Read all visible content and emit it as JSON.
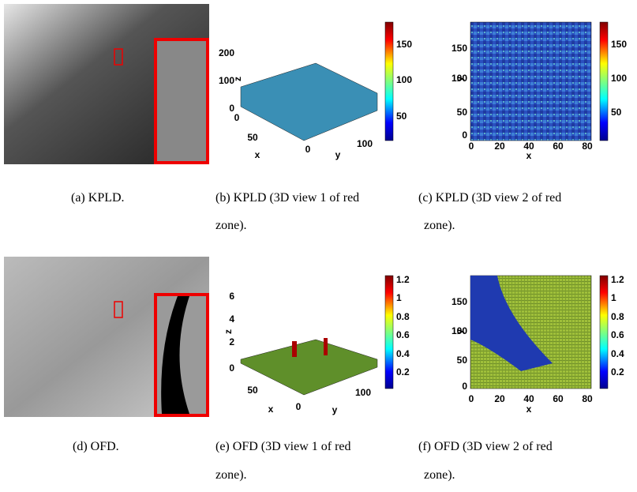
{
  "panels": [
    {
      "caption": [
        "(a) KPLD."
      ]
    },
    {
      "caption": [
        "(b) KPLD (3D view 1 of red",
        "zone)."
      ],
      "z_ticks": [
        "200",
        "100",
        "0"
      ],
      "z_label": "z",
      "x_ticks": [
        "0",
        "50"
      ],
      "x_label": "x",
      "y_ticks": [
        "0",
        "100"
      ],
      "y_label": "y",
      "colorbar_ticks": [
        "150",
        "100",
        "50"
      ]
    },
    {
      "caption": [
        "(c) KPLD (3D view 2 of red",
        "zone)."
      ],
      "y_ticks": [
        "150",
        "100",
        "50",
        "0"
      ],
      "y_label": "y",
      "x_ticks": [
        "0",
        "20",
        "40",
        "60",
        "80"
      ],
      "x_label": "x",
      "colorbar_ticks": [
        "150",
        "100",
        "50"
      ]
    },
    {
      "caption": [
        "(d) OFD."
      ]
    },
    {
      "caption": [
        "(e) OFD (3D view 1 of red",
        "zone)."
      ],
      "z_ticks": [
        "6",
        "4",
        "2",
        "0"
      ],
      "z_label": "z",
      "x_ticks": [
        "50"
      ],
      "x_label": "x",
      "y_ticks": [
        "0",
        "100"
      ],
      "y_label": "y",
      "colorbar_ticks": [
        "1.2",
        "1",
        "0.8",
        "0.6",
        "0.4",
        "0.2"
      ]
    },
    {
      "caption": [
        "(f) OFD (3D view 2 of red",
        "zone)."
      ],
      "y_ticks": [
        "150",
        "100",
        "50",
        "0"
      ],
      "y_label": "y",
      "x_ticks": [
        "0",
        "20",
        "40",
        "60",
        "80"
      ],
      "x_label": "x",
      "colorbar_ticks": [
        "1.2",
        "1",
        "0.8",
        "0.6",
        "0.4",
        "0.2"
      ]
    }
  ]
}
